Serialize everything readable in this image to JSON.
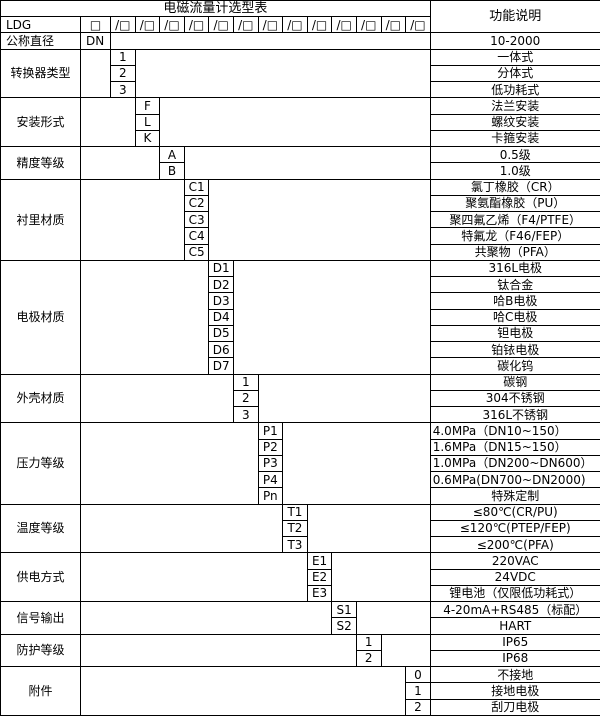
{
  "title": "电磁流量计选型表",
  "function_header": "功能说明",
  "model_row": {
    "label": "LDG",
    "box": "□",
    "slot": "/□",
    "slot_count": 13
  },
  "dn_row": {
    "label": "公称直径",
    "code": "DN",
    "function": "10-2000"
  },
  "groups": [
    {
      "label": "转换器类型",
      "col": 1,
      "items": [
        {
          "code": "1",
          "function": "一体式"
        },
        {
          "code": "2",
          "function": "分体式"
        },
        {
          "code": "3",
          "function": "低功耗式"
        }
      ]
    },
    {
      "label": "安装形式",
      "col": 2,
      "items": [
        {
          "code": "F",
          "function": "法兰安装"
        },
        {
          "code": "L",
          "function": "螺纹安装"
        },
        {
          "code": "K",
          "function": "卡箍安装"
        }
      ]
    },
    {
      "label": "精度等级",
      "col": 3,
      "items": [
        {
          "code": "A",
          "function": "0.5级"
        },
        {
          "code": "B",
          "function": "1.0级"
        }
      ]
    },
    {
      "label": "衬里材质",
      "col": 4,
      "items": [
        {
          "code": "C1",
          "function": "氯丁橡胶（CR）"
        },
        {
          "code": "C2",
          "function": "聚氨酯橡胶（PU）"
        },
        {
          "code": "C3",
          "function": "聚四氟乙烯（F4/PTFE）"
        },
        {
          "code": "C4",
          "function": "特氟龙（F46/FEP）"
        },
        {
          "code": "C5",
          "function": "共聚物（PFA）"
        }
      ]
    },
    {
      "label": "电极材质",
      "col": 5,
      "items": [
        {
          "code": "D1",
          "function": "316L电极"
        },
        {
          "code": "D2",
          "function": "钛合金"
        },
        {
          "code": "D3",
          "function": "哈B电极"
        },
        {
          "code": "D4",
          "function": "哈C电极"
        },
        {
          "code": "D5",
          "function": "钽电极"
        },
        {
          "code": "D6",
          "function": "铂铱电极"
        },
        {
          "code": "D7",
          "function": "碳化钨"
        }
      ]
    },
    {
      "label": "外壳材质",
      "col": 6,
      "items": [
        {
          "code": "1",
          "function": "碳钢"
        },
        {
          "code": "2",
          "function": "304不锈钢"
        },
        {
          "code": "3",
          "function": "316L不锈钢"
        }
      ]
    },
    {
      "label": "压力等级",
      "col": 7,
      "align": "left",
      "items": [
        {
          "code": "P1",
          "function": "4.0MPa（DN10~150）"
        },
        {
          "code": "P2",
          "function": "1.6MPa（DN15~150）"
        },
        {
          "code": "P3",
          "function": "1.0MPa（DN200~DN600）"
        },
        {
          "code": "P4",
          "function": "0.6MPa(DN700~DN2000)"
        },
        {
          "code": "Pn",
          "function": "特殊定制",
          "align": "center"
        }
      ]
    },
    {
      "label": "温度等级",
      "col": 8,
      "items": [
        {
          "code": "T1",
          "function": "≤80℃(CR/PU)"
        },
        {
          "code": "T2",
          "function": "≤120℃(PTEP/FEP)"
        },
        {
          "code": "T3",
          "function": "≤200℃(PFA)"
        }
      ]
    },
    {
      "label": "供电方式",
      "col": 9,
      "items": [
        {
          "code": "E1",
          "function": "220VAC"
        },
        {
          "code": "E2",
          "function": "24VDC"
        },
        {
          "code": "E3",
          "function": "锂电池（仅限低功耗式）"
        }
      ]
    },
    {
      "label": "信号输出",
      "col": 10,
      "items": [
        {
          "code": "S1",
          "function": "4-20mA+RS485（标配）"
        },
        {
          "code": "S2",
          "function": "HART"
        }
      ]
    },
    {
      "label": "防护等级",
      "col": 11,
      "items": [
        {
          "code": "1",
          "function": "IP65"
        },
        {
          "code": "2",
          "function": "IP68"
        }
      ]
    },
    {
      "label": "附件",
      "col": 13,
      "items": [
        {
          "code": "0",
          "function": "不接地"
        },
        {
          "code": "1",
          "function": "接地电极"
        },
        {
          "code": "2",
          "function": "刮刀电极"
        }
      ]
    }
  ]
}
